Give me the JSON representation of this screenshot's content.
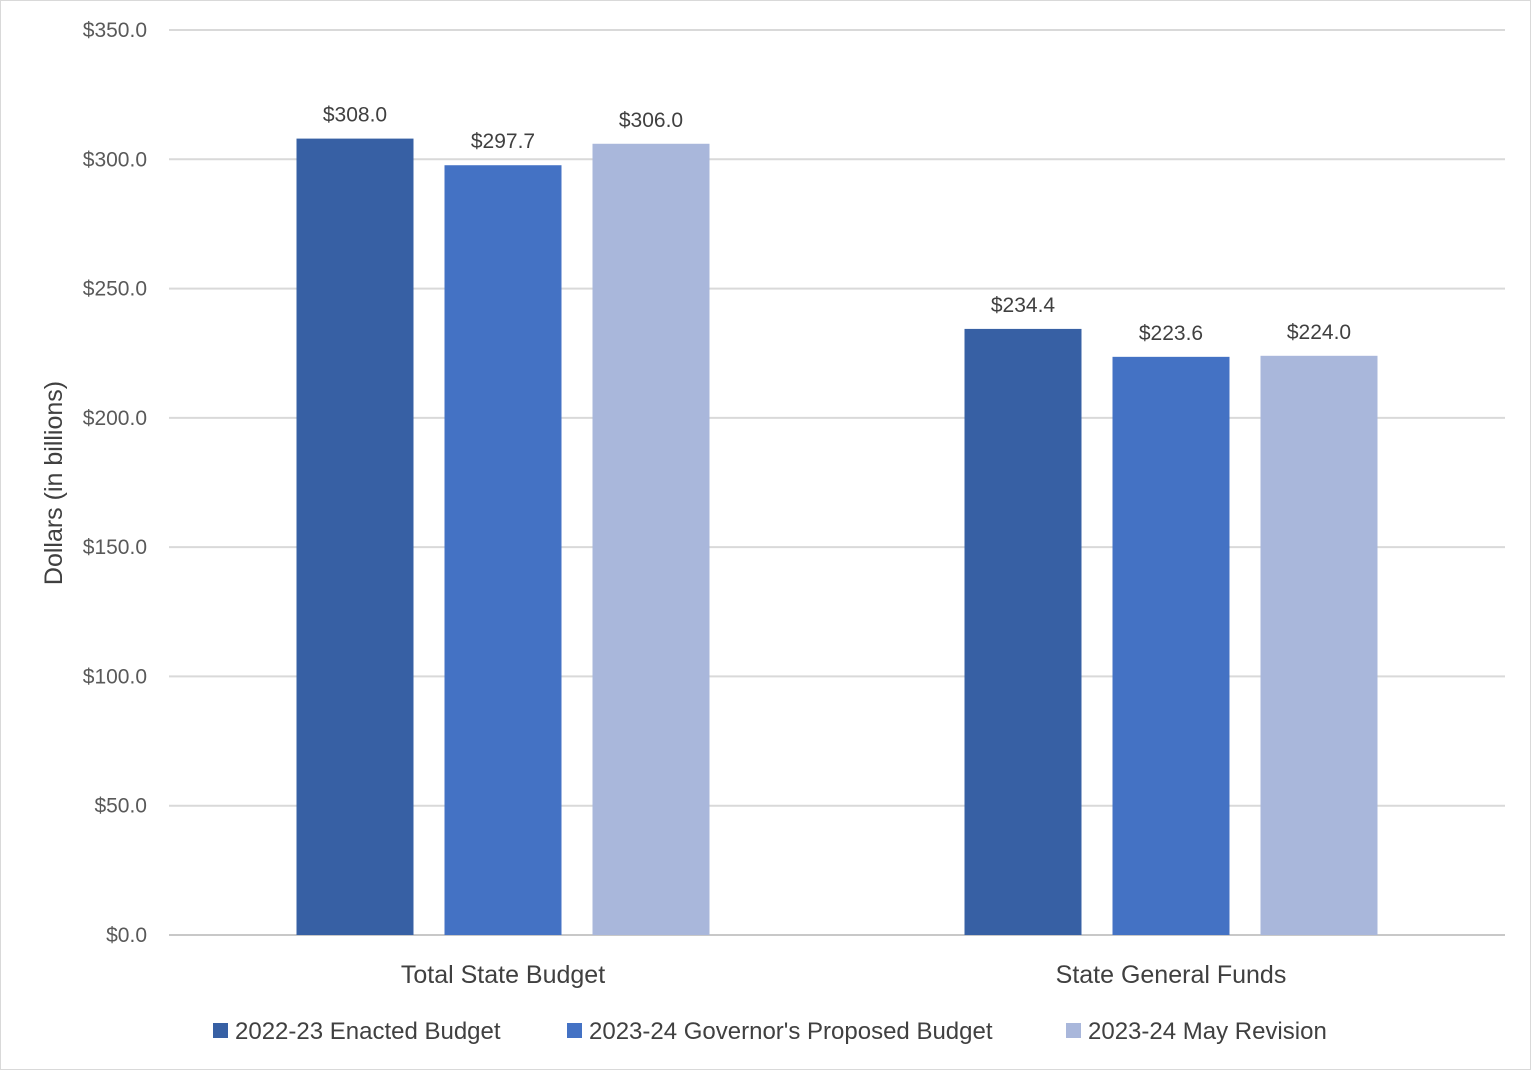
{
  "chart_data": {
    "type": "bar",
    "ylabel": "Dollars (in billions)",
    "ylim": [
      0,
      350
    ],
    "y_ticks": [
      0,
      50,
      100,
      150,
      200,
      250,
      300,
      350
    ],
    "y_tick_labels": [
      "$0.0",
      "$50.0",
      "$100.0",
      "$150.0",
      "$200.0",
      "$250.0",
      "$300.0",
      "$350.0"
    ],
    "categories": [
      "Total State Budget",
      "State General Funds"
    ],
    "series": [
      {
        "name": "2022-23 Enacted Budget",
        "color": "#3760A4",
        "values": [
          308.0,
          234.4
        ],
        "labels": [
          "$308.0",
          "$234.4"
        ]
      },
      {
        "name": "2023-24 Governor's Proposed Budget",
        "color": "#4472C4",
        "values": [
          297.7,
          223.6
        ],
        "labels": [
          "$297.7",
          "$223.6"
        ]
      },
      {
        "name": "2023-24 May Revision",
        "color": "#A9B7DB",
        "values": [
          306.0,
          224.0
        ],
        "labels": [
          "$306.0",
          "$224.0"
        ]
      }
    ],
    "grid": true,
    "legend_position": "bottom"
  }
}
